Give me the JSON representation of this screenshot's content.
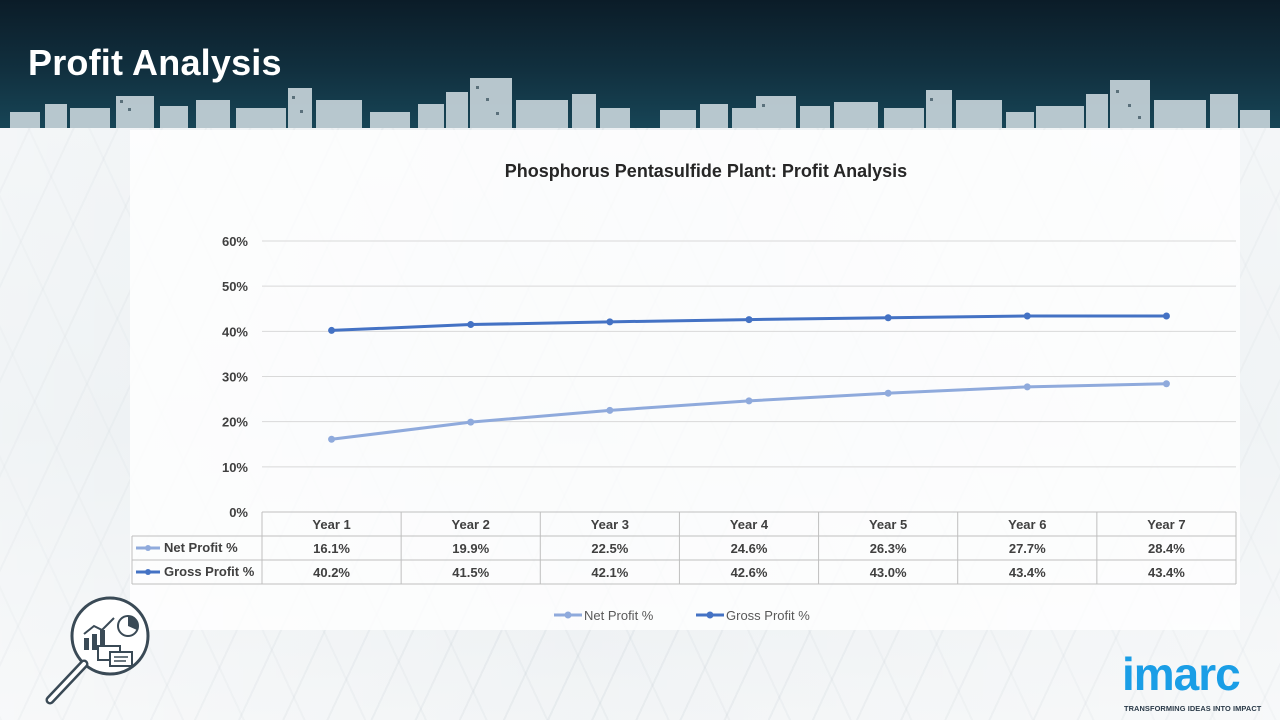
{
  "page": {
    "title": "Profit Analysis"
  },
  "logo": {
    "text": "imarc",
    "tagline": "TRANSFORMING IDEAS INTO IMPACT"
  },
  "chart_data": {
    "type": "line",
    "title": "Phosphorus Pentasulfide Plant: Profit Analysis",
    "categories": [
      "Year 1",
      "Year 2",
      "Year 3",
      "Year 4",
      "Year 5",
      "Year 6",
      "Year 7"
    ],
    "series": [
      {
        "name": "Net Profit %",
        "values": [
          16.1,
          19.9,
          22.5,
          24.6,
          26.3,
          27.7,
          28.4
        ],
        "labels": [
          "16.1%",
          "19.9%",
          "22.5%",
          "24.6%",
          "26.3%",
          "27.7%",
          "28.4%"
        ],
        "color": "#8faadc"
      },
      {
        "name": "Gross Profit %",
        "values": [
          40.2,
          41.5,
          42.1,
          42.6,
          43.0,
          43.4,
          43.4
        ],
        "labels": [
          "40.2%",
          "41.5%",
          "42.1%",
          "42.6%",
          "43.0%",
          "43.4%",
          "43.4%"
        ],
        "color": "#4472c4"
      }
    ],
    "yticks": [
      "0%",
      "10%",
      "20%",
      "30%",
      "40%",
      "50%",
      "60%"
    ],
    "ylim": [
      0,
      60
    ],
    "xlabel": "",
    "ylabel": "",
    "grid": true,
    "legend": "bottom",
    "data_table": true
  }
}
